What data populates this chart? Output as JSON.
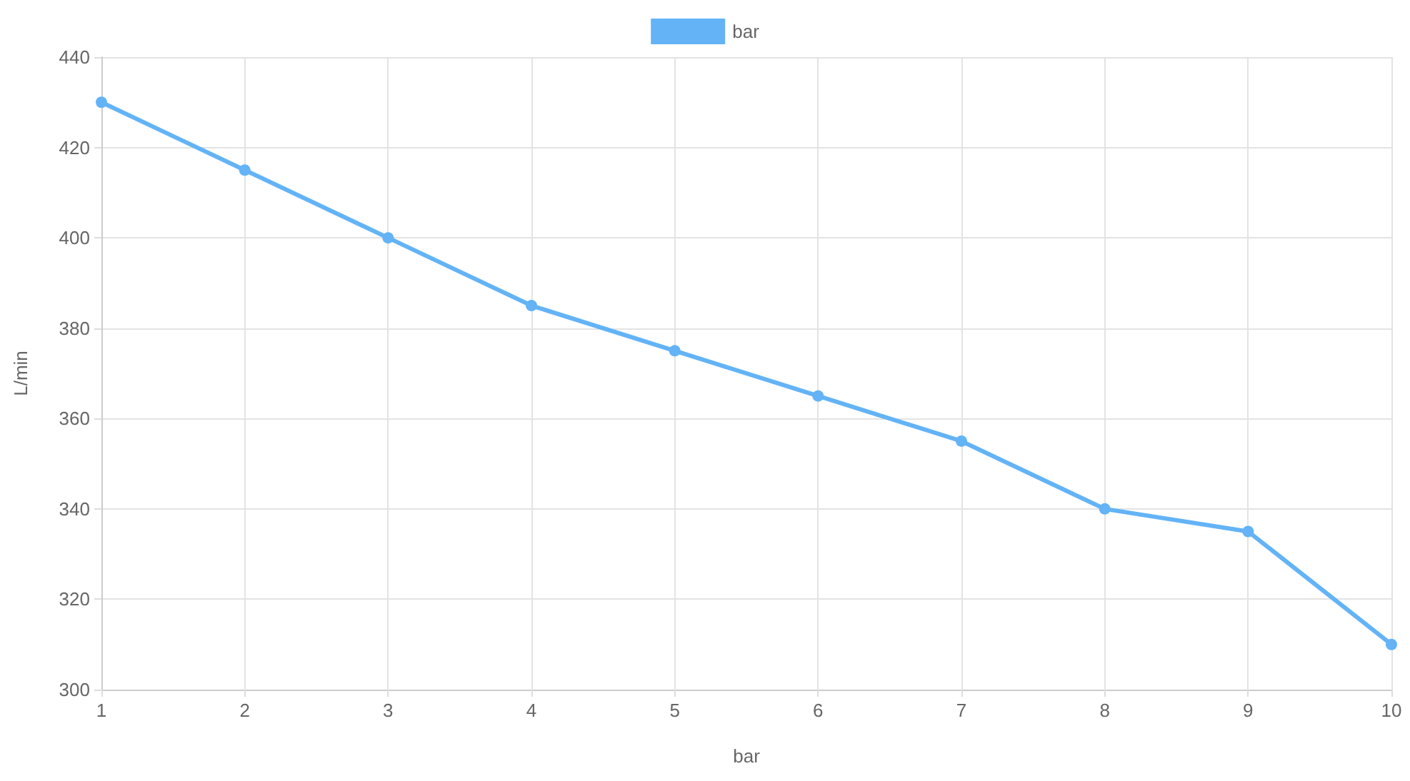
{
  "chart_data": {
    "type": "line",
    "xlabel": "bar",
    "ylabel": "L/min",
    "x": [
      1,
      2,
      3,
      4,
      5,
      6,
      7,
      8,
      9,
      10
    ],
    "series": [
      {
        "name": "bar",
        "color": "#63b3f6",
        "values": [
          430,
          415,
          400,
          385,
          375,
          365,
          355,
          340,
          335,
          310
        ]
      }
    ],
    "xlim": [
      1,
      10
    ],
    "xticks": [
      1,
      2,
      3,
      4,
      5,
      6,
      7,
      8,
      9,
      10
    ],
    "ylim": [
      300,
      440
    ],
    "yticks": [
      300,
      320,
      340,
      360,
      380,
      400,
      420,
      440
    ],
    "grid": true,
    "legend": "top",
    "marker": "circle",
    "line_style": "solid"
  }
}
